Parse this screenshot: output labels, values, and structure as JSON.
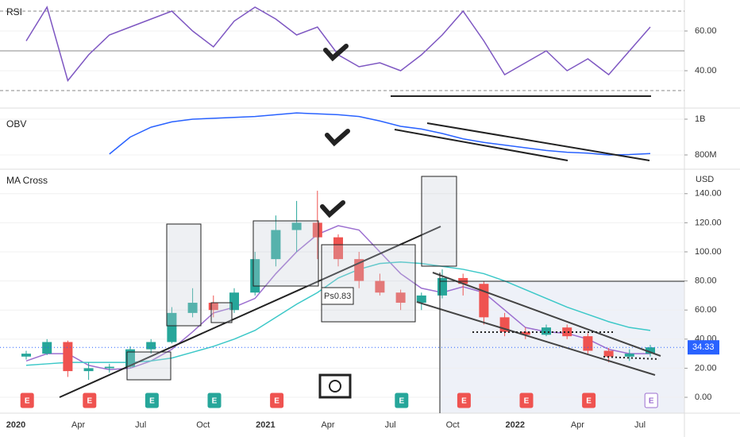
{
  "chart_data": [
    {
      "type": "line",
      "title": "RSI",
      "x": [
        "2020-01",
        "2020-02",
        "2020-03",
        "2020-04",
        "2020-05",
        "2020-06",
        "2020-07",
        "2020-08",
        "2020-09",
        "2020-10",
        "2020-11",
        "2020-12",
        "2021-01",
        "2021-02",
        "2021-03",
        "2021-04",
        "2021-05",
        "2021-06",
        "2021-07",
        "2021-08",
        "2021-09",
        "2021-10",
        "2021-11",
        "2021-12",
        "2022-01",
        "2022-02",
        "2022-03",
        "2022-04",
        "2022-05",
        "2022-06",
        "2022-07"
      ],
      "series": [
        {
          "color": "#7e57c2",
          "values": [
            55,
            72,
            35,
            48,
            58,
            62,
            66,
            70,
            60,
            52,
            65,
            72,
            66,
            58,
            62,
            48,
            42,
            44,
            40,
            48,
            58,
            70,
            55,
            38,
            44,
            50,
            40,
            46,
            38,
            50,
            62
          ]
        }
      ],
      "levels": [
        70,
        50,
        30
      ],
      "ylim": [
        21.6,
        75.6
      ],
      "yticks": [
        {
          "value": 60,
          "label": "60.00"
        },
        {
          "value": 40,
          "label": "40.00"
        }
      ]
    },
    {
      "type": "line",
      "title": "OBV",
      "x": [
        "2020-01",
        "2020-02",
        "2020-03",
        "2020-04",
        "2020-05",
        "2020-06",
        "2020-07",
        "2020-08",
        "2020-09",
        "2020-10",
        "2020-11",
        "2020-12",
        "2021-01",
        "2021-02",
        "2021-03",
        "2021-04",
        "2021-05",
        "2021-06",
        "2021-07",
        "2021-08",
        "2021-09",
        "2021-10",
        "2021-11",
        "2021-12",
        "2022-01",
        "2022-02",
        "2022-03",
        "2022-04",
        "2022-05",
        "2022-06",
        "2022-07"
      ],
      "series": [
        {
          "color": "#2962ff",
          "values": [
            null,
            null,
            null,
            null,
            805000000,
            900000000,
            955000000,
            985000000,
            1000000000,
            1005000000,
            1010000000,
            1015000000,
            1025000000,
            1035000000,
            1030000000,
            1025000000,
            1015000000,
            990000000,
            960000000,
            945000000,
            920000000,
            890000000,
            870000000,
            855000000,
            840000000,
            825000000,
            815000000,
            810000000,
            800000000,
            802000000,
            808000000
          ]
        }
      ],
      "ylim": [
        733300000,
        1057800000
      ],
      "yticks": [
        {
          "value": 1000000000,
          "label": "1B"
        },
        {
          "value": 800000000,
          "label": "800M"
        }
      ]
    },
    {
      "type": "candlestick",
      "title": "MA Cross",
      "y_unit": "USD",
      "x": [
        "2020-01",
        "2020-02",
        "2020-03",
        "2020-04",
        "2020-05",
        "2020-06",
        "2020-07",
        "2020-08",
        "2020-09",
        "2020-10",
        "2020-11",
        "2020-12",
        "2021-01",
        "2021-02",
        "2021-03",
        "2021-04",
        "2021-05",
        "2021-06",
        "2021-07",
        "2021-08",
        "2021-09",
        "2021-10",
        "2021-11",
        "2021-12",
        "2022-01",
        "2022-02",
        "2022-03",
        "2022-04",
        "2022-05",
        "2022-06",
        "2022-07"
      ],
      "open": [
        28,
        30,
        38,
        18,
        20,
        21,
        33,
        38,
        58,
        65,
        60,
        72,
        95,
        115,
        120,
        110,
        95,
        80,
        72,
        65,
        70,
        82,
        78,
        55,
        45,
        43,
        48,
        42,
        32,
        28,
        30
      ],
      "high": [
        32,
        40,
        39,
        24,
        23,
        35,
        40,
        62,
        75,
        70,
        75,
        100,
        125,
        135,
        142,
        112,
        100,
        85,
        74,
        72,
        88,
        85,
        80,
        58,
        48,
        50,
        50,
        44,
        34,
        33,
        36
      ],
      "low": [
        26,
        29,
        14,
        12,
        17,
        20,
        30,
        37,
        55,
        55,
        58,
        70,
        90,
        100,
        95,
        90,
        75,
        70,
        60,
        60,
        68,
        70,
        50,
        42,
        40,
        42,
        40,
        30,
        24,
        25,
        28
      ],
      "close": [
        30,
        38,
        18,
        20,
        21,
        33,
        38,
        58,
        65,
        60,
        72,
        95,
        115,
        120,
        110,
        95,
        80,
        72,
        65,
        70,
        82,
        78,
        55,
        45,
        43,
        48,
        42,
        32,
        28,
        30,
        34.33
      ],
      "up_color": "#26a69a",
      "down_color": "#ef5350",
      "series": [
        {
          "color": "#9c6fd0",
          "values": [
            25,
            30,
            30,
            22,
            19,
            20,
            25,
            33,
            45,
            58,
            62,
            68,
            85,
            100,
            112,
            118,
            115,
            100,
            85,
            75,
            72,
            76,
            72,
            60,
            48,
            45,
            44,
            40,
            33,
            30,
            30
          ]
        },
        {
          "color": "#3cc8c8",
          "values": [
            22,
            23,
            24,
            24,
            24,
            24,
            25,
            27,
            31,
            35,
            40,
            46,
            55,
            64,
            72,
            82,
            88,
            92,
            93,
            92,
            90,
            88,
            85,
            80,
            74,
            68,
            62,
            57,
            52,
            48,
            46
          ]
        }
      ],
      "ylim": [
        -10.9,
        155.7
      ],
      "yticks": [
        {
          "value": 140,
          "label": "140.00"
        },
        {
          "value": 120,
          "label": "120.00"
        },
        {
          "value": 100,
          "label": "100.00"
        },
        {
          "value": 80,
          "label": "80.00"
        },
        {
          "value": 60,
          "label": "60.00"
        },
        {
          "value": 40,
          "label": "40.00"
        },
        {
          "value": 20,
          "label": "20.00"
        },
        {
          "value": 0,
          "label": "0.00"
        }
      ],
      "xticks": [
        {
          "value": "2020-01",
          "label": "2020"
        },
        {
          "value": "2020-04",
          "label": "Apr"
        },
        {
          "value": "2020-07",
          "label": "Jul"
        },
        {
          "value": "2020-10",
          "label": "Oct"
        },
        {
          "value": "2021-01",
          "label": "2021"
        },
        {
          "value": "2021-04",
          "label": "Apr"
        },
        {
          "value": "2021-07",
          "label": "Jul"
        },
        {
          "value": "2021-10",
          "label": "Oct"
        },
        {
          "value": "2022-01",
          "label": "2022"
        },
        {
          "value": "2022-04",
          "label": "Apr"
        },
        {
          "value": "2022-07",
          "label": "Jul"
        }
      ],
      "annotations": [
        "Ps0.83"
      ],
      "earnings": [
        {
          "x": "2020-02",
          "label": "E",
          "color": "#ef5350"
        },
        {
          "x": "2020-05",
          "label": "E",
          "color": "#ef5350"
        },
        {
          "x": "2020-08",
          "label": "E",
          "color": "#26a69a"
        },
        {
          "x": "2020-11",
          "label": "E",
          "color": "#26a69a"
        },
        {
          "x": "2021-02",
          "label": "E",
          "color": "#ef5350"
        },
        {
          "x": "2021-08",
          "label": "E",
          "color": "#26a69a"
        },
        {
          "x": "2021-11",
          "label": "E",
          "color": "#ef5350"
        },
        {
          "x": "2022-02",
          "label": "E",
          "color": "#ef5350"
        },
        {
          "x": "2022-05",
          "label": "E",
          "color": "#ef5350"
        },
        {
          "x": "2022-08",
          "label": "E",
          "color": "#9c6fd0"
        }
      ]
    }
  ]
}
